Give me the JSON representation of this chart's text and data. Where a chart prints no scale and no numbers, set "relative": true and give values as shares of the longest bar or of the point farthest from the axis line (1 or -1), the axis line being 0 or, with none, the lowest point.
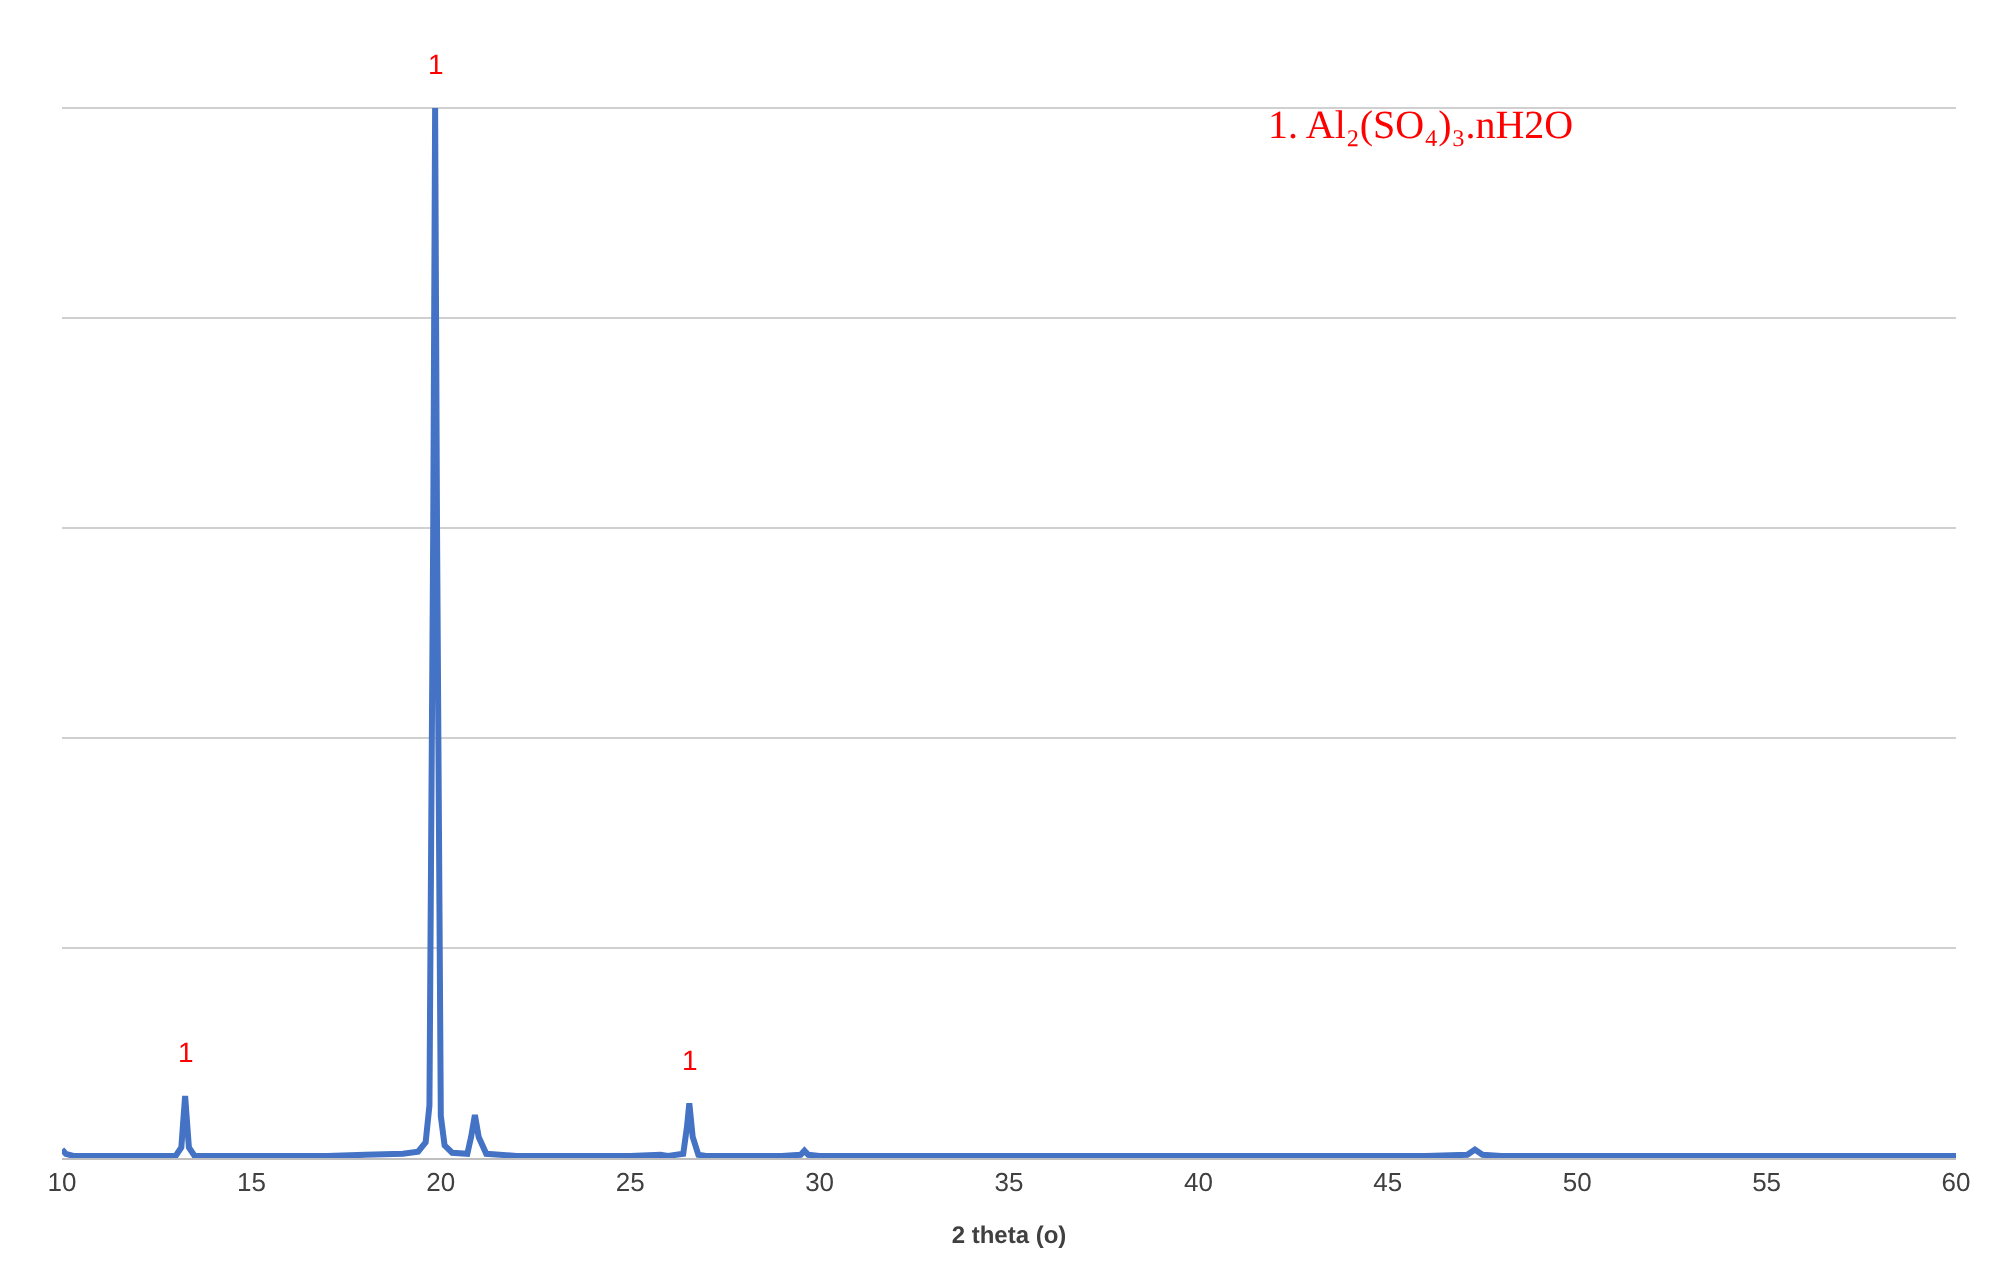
{
  "chart_data": {
    "type": "line",
    "relative": true,
    "xlabel": "2 theta (o)",
    "x": [
      10,
      10.1,
      10.3,
      11,
      12,
      13,
      13.15,
      13.25,
      13.35,
      13.5,
      14,
      15,
      16,
      17,
      18,
      19,
      19.4,
      19.6,
      19.7,
      19.8,
      19.85,
      19.9,
      20,
      20.1,
      20.3,
      20.7,
      20.8,
      20.9,
      21.0,
      21.2,
      22,
      23,
      24,
      25,
      25.8,
      26,
      26.4,
      26.5,
      26.56,
      26.65,
      26.8,
      27,
      28,
      29,
      29.5,
      29.6,
      29.7,
      30,
      32,
      34,
      36,
      38,
      40,
      42,
      44,
      46,
      47.1,
      47.3,
      47.5,
      48,
      50,
      52,
      54,
      56,
      58,
      60
    ],
    "series": [
      {
        "color": "#4472c4",
        "values": [
          0.008,
          0.004,
          0.002,
          0.002,
          0.002,
          0.002,
          0.01,
          0.059,
          0.01,
          0.002,
          0.002,
          0.002,
          0.002,
          0.002,
          0.003,
          0.004,
          0.006,
          0.015,
          0.05,
          0.6,
          1,
          0.6,
          0.04,
          0.012,
          0.005,
          0.004,
          0.02,
          0.041,
          0.02,
          0.004,
          0.002,
          0.002,
          0.002,
          0.002,
          0.003,
          0.002,
          0.004,
          0.03,
          0.052,
          0.02,
          0.003,
          0.002,
          0.002,
          0.002,
          0.003,
          0.007,
          0.003,
          0.002,
          0.002,
          0.002,
          0.002,
          0.002,
          0.002,
          0.002,
          0.002,
          0.002,
          0.003,
          0.008,
          0.003,
          0.002,
          0.002,
          0.002,
          0.002,
          0.002,
          0.002,
          0.002
        ]
      }
    ],
    "xlim": [
      10,
      60
    ],
    "xticks": [
      10,
      15,
      20,
      25,
      30,
      35,
      40,
      45,
      50,
      55,
      60
    ],
    "grid": "y",
    "marker": "none",
    "line_style": "solid",
    "annotations": [
      {
        "text": "1",
        "x": 13.25,
        "y": 0.059
      },
      {
        "text": "1",
        "x": 19.85,
        "y": 1
      },
      {
        "text": "1",
        "x": 26.56,
        "y": 0.052
      },
      "1. Al₂(SO₄)₃.nH2O"
    ]
  }
}
